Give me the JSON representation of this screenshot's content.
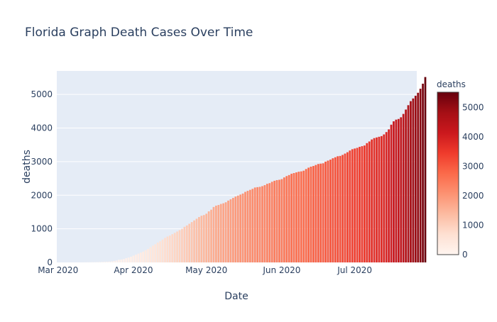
{
  "chart_data": {
    "type": "bar",
    "title": "Florida Graph Death Cases Over Time",
    "xlabel": "Date",
    "ylabel": "deaths",
    "x_start": "2020-03-01",
    "x_end": "2020-07-26",
    "x_ticks": [
      {
        "date": "2020-03-01",
        "label": "Mar 2020"
      },
      {
        "date": "2020-04-01",
        "label": "Apr 2020"
      },
      {
        "date": "2020-05-01",
        "label": "May 2020"
      },
      {
        "date": "2020-06-01",
        "label": "Jun 2020"
      },
      {
        "date": "2020-07-01",
        "label": "Jul 2020"
      }
    ],
    "ylim": [
      0,
      5700
    ],
    "y_ticks": [
      0,
      1000,
      2000,
      3000,
      4000,
      5000
    ],
    "grid": true,
    "colorbar": {
      "title": "deaths",
      "range": [
        0,
        5518
      ],
      "ticks": [
        0,
        1000,
        2000,
        3000,
        4000,
        5000
      ],
      "colorscale": [
        "#fff5f0",
        "#fee0d2",
        "#fcbba1",
        "#fc9272",
        "#fb6a4a",
        "#ef3b2c",
        "#cb181d",
        "#a50f15",
        "#67000d"
      ]
    },
    "series": [
      {
        "values": [
          0,
          0,
          0,
          0,
          0,
          2,
          2,
          2,
          2,
          2,
          3,
          4,
          5,
          6,
          7,
          8,
          10,
          12,
          13,
          18,
          20,
          23,
          30,
          40,
          57,
          77,
          85,
          100,
          125,
          145,
          170,
          200,
          230,
          260,
          290,
          320,
          360,
          400,
          450,
          500,
          540,
          590,
          630,
          680,
          730,
          770,
          800,
          840,
          880,
          920,
          960,
          1000,
          1060,
          1100,
          1150,
          1200,
          1250,
          1300,
          1350,
          1390,
          1410,
          1450,
          1520,
          1570,
          1650,
          1690,
          1710,
          1740,
          1760,
          1790,
          1840,
          1880,
          1920,
          1960,
          1990,
          2020,
          2050,
          2100,
          2130,
          2160,
          2190,
          2230,
          2240,
          2250,
          2270,
          2300,
          2340,
          2360,
          2400,
          2430,
          2450,
          2460,
          2480,
          2530,
          2570,
          2600,
          2640,
          2660,
          2680,
          2700,
          2710,
          2730,
          2780,
          2820,
          2850,
          2870,
          2900,
          2930,
          2940,
          2950,
          3000,
          3030,
          3060,
          3100,
          3130,
          3160,
          3170,
          3200,
          3240,
          3280,
          3330,
          3370,
          3390,
          3410,
          3440,
          3460,
          3480,
          3550,
          3600,
          3660,
          3700,
          3720,
          3740,
          3760,
          3810,
          3880,
          3960,
          4100,
          4200,
          4250,
          4270,
          4320,
          4420,
          4550,
          4680,
          4800,
          4880,
          4960,
          5050,
          5170,
          5320,
          5518
        ]
      }
    ]
  }
}
